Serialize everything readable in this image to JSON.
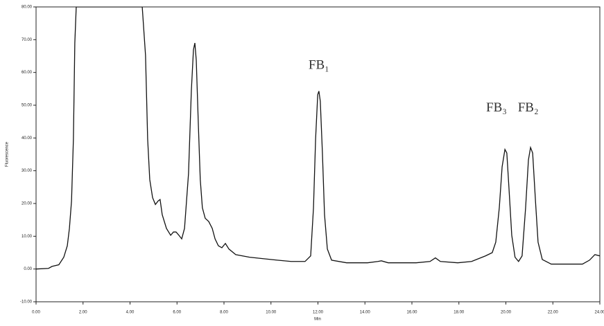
{
  "chart_data": {
    "type": "line",
    "x_label": "Min",
    "y_label": "Fluorescence",
    "xlim": [
      0,
      24
    ],
    "ylim": [
      -10,
      80
    ],
    "xticks": [
      {
        "value": 0,
        "label": "0.00"
      },
      {
        "value": 2,
        "label": "2.00"
      },
      {
        "value": 4,
        "label": "4.00"
      },
      {
        "value": 6,
        "label": "6.00"
      },
      {
        "value": 8,
        "label": "8.00"
      },
      {
        "value": 10,
        "label": "10.00"
      },
      {
        "value": 12,
        "label": "12.00"
      },
      {
        "value": 14,
        "label": "14.00"
      },
      {
        "value": 16,
        "label": "16.00"
      },
      {
        "value": 18,
        "label": "18.00"
      },
      {
        "value": 20,
        "label": "20.00"
      },
      {
        "value": 22,
        "label": "22.00"
      },
      {
        "value": 24,
        "label": "24.00"
      }
    ],
    "yticks": [
      {
        "value": -10,
        "label": "-10.00"
      },
      {
        "value": 0,
        "label": "0.00"
      },
      {
        "value": 10,
        "label": "10.00"
      },
      {
        "value": 20,
        "label": "20.00"
      },
      {
        "value": 30,
        "label": "30.00"
      },
      {
        "value": 40,
        "label": "40.00"
      },
      {
        "value": 50,
        "label": "50.00"
      },
      {
        "value": 60,
        "label": "60.00"
      },
      {
        "value": 70,
        "label": "70.00"
      },
      {
        "value": 80,
        "label": "80.00"
      }
    ],
    "x": [
      0,
      0.53,
      0.68,
      0.97,
      1.18,
      1.33,
      1.42,
      1.51,
      1.59,
      1.65,
      1.71,
      4.52,
      4.66,
      4.75,
      4.84,
      4.96,
      5.08,
      5.2,
      5.28,
      5.37,
      5.55,
      5.73,
      5.85,
      5.96,
      6.08,
      6.2,
      6.32,
      6.49,
      6.61,
      6.7,
      6.76,
      6.82,
      6.91,
      6.99,
      7.08,
      7.2,
      7.35,
      7.5,
      7.62,
      7.76,
      7.91,
      8.06,
      8.21,
      8.5,
      9.09,
      10.27,
      10.86,
      11.45,
      11.69,
      11.81,
      11.9,
      11.99,
      12.04,
      12.1,
      12.19,
      12.28,
      12.4,
      12.58,
      13.22,
      14.11,
      14.55,
      14.7,
      14.99,
      16.18,
      16.77,
      17.0,
      17.21,
      17.95,
      18.54,
      19.13,
      19.42,
      19.57,
      19.72,
      19.84,
      19.96,
      20.04,
      20.13,
      20.25,
      20.39,
      20.54,
      20.69,
      20.84,
      20.96,
      21.05,
      21.14,
      21.26,
      21.37,
      21.55,
      21.93,
      23.26,
      23.56,
      23.79,
      24.0
    ],
    "series": [
      {
        "color": "#111111",
        "values": [
          0,
          0.2,
          0.8,
          1.3,
          3.6,
          7.1,
          12.4,
          20.8,
          39.7,
          69.0,
          80,
          80,
          65.2,
          39.7,
          27.3,
          21.8,
          19.7,
          20.8,
          21.2,
          16.6,
          12.4,
          10.3,
          11.3,
          11.3,
          10.3,
          9.2,
          12.4,
          29.1,
          54.3,
          66.9,
          69.0,
          63.7,
          43.8,
          27.3,
          18.7,
          15.5,
          14.5,
          12.4,
          9.2,
          7.1,
          6.5,
          7.8,
          6.1,
          4.4,
          3.6,
          2.7,
          2.3,
          2.3,
          4.0,
          18.7,
          39.7,
          53.2,
          54.3,
          51.2,
          35.4,
          16.6,
          6.1,
          2.7,
          1.9,
          1.9,
          2.3,
          2.5,
          1.9,
          1.9,
          2.3,
          3.4,
          2.3,
          1.9,
          2.3,
          4.0,
          5.0,
          8.2,
          18.7,
          31.2,
          36.5,
          35.4,
          24.9,
          10.3,
          3.6,
          2.3,
          4.0,
          18.7,
          33.3,
          37.1,
          35.4,
          20.8,
          8.2,
          2.9,
          1.5,
          1.5,
          2.7,
          4.4,
          4.0
        ]
      }
    ],
    "annotations": [
      {
        "text": "FB₁",
        "x": 12.04,
        "y": 62
      },
      {
        "text": "FB₃",
        "x": 19.6,
        "y": 49
      },
      {
        "text": "FB₂",
        "x": 20.95,
        "y": 49
      }
    ]
  }
}
